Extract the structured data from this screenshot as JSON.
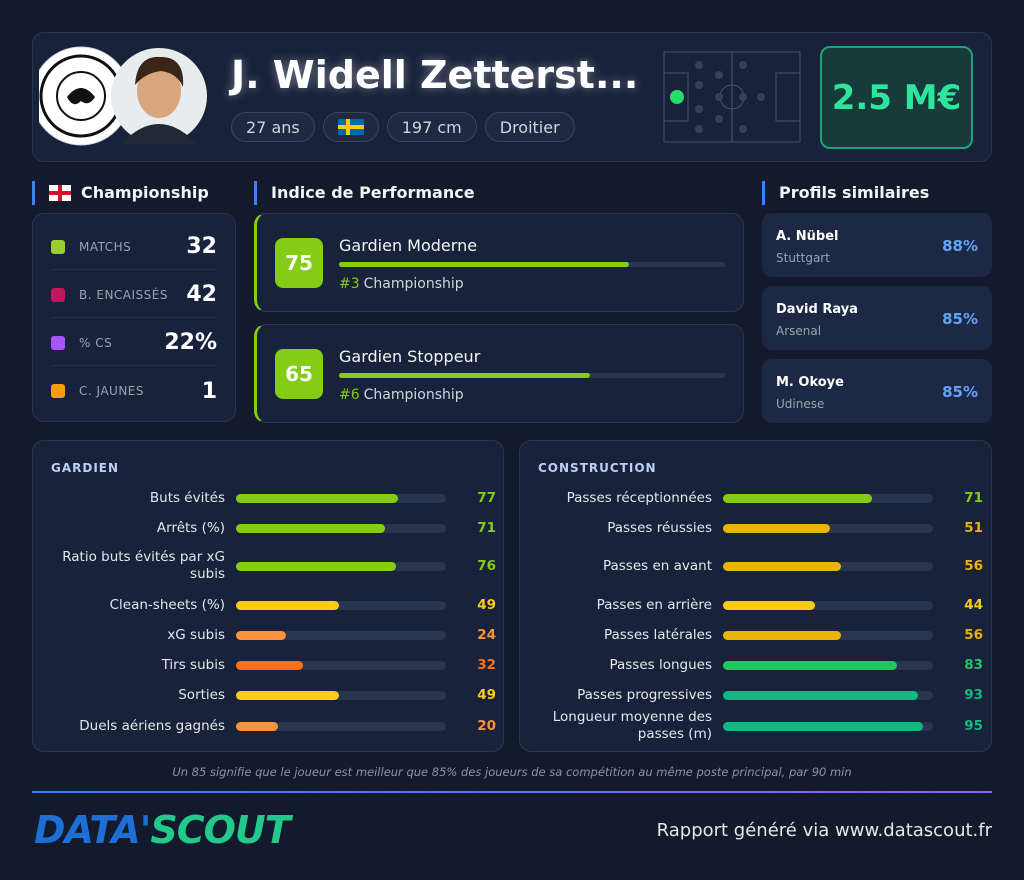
{
  "header": {
    "player_name": "J. Widell Zetterst...",
    "tags": [
      "27 ans",
      "197 cm",
      "Droitier"
    ],
    "market_value": "2.5 M€"
  },
  "league": {
    "name": "Championship",
    "stats": [
      {
        "label": "MATCHS",
        "value": "32"
      },
      {
        "label": "B. ENCAISSÉS",
        "value": "42"
      },
      {
        "label": "% CS",
        "value": "22%"
      },
      {
        "label": "C. JAUNES",
        "value": "1"
      }
    ]
  },
  "performance": {
    "title": "Indice de Performance",
    "items": [
      {
        "score": 75,
        "title": "Gardien Moderne",
        "rank": "#3",
        "league": "Championship"
      },
      {
        "score": 65,
        "title": "Gardien Stoppeur",
        "rank": "#6",
        "league": "Championship"
      }
    ]
  },
  "similar": {
    "title": "Profils similaires",
    "items": [
      {
        "name": "A. Nübel",
        "club": "Stuttgart",
        "match": "88%"
      },
      {
        "name": "David Raya",
        "club": "Arsenal",
        "match": "85%"
      },
      {
        "name": "M. Okoye",
        "club": "Udinese",
        "match": "85%"
      }
    ]
  },
  "panels": [
    {
      "title": "GARDIEN",
      "rows": [
        {
          "label": "Buts évités",
          "value": 77
        },
        {
          "label": "Arrêts (%)",
          "value": 71
        },
        {
          "label": "Ratio buts évités par xG subis",
          "value": 76
        },
        {
          "label": "Clean-sheets (%)",
          "value": 49
        },
        {
          "label": "xG subis",
          "value": 24
        },
        {
          "label": "Tirs subis",
          "value": 32
        },
        {
          "label": "Sorties",
          "value": 49
        },
        {
          "label": "Duels aériens gagnés",
          "value": 20
        }
      ]
    },
    {
      "title": "CONSTRUCTION",
      "rows": [
        {
          "label": "Passes réceptionnées",
          "value": 71
        },
        {
          "label": "Passes réussies",
          "value": 51
        },
        {
          "label": "Passes en avant",
          "value": 56
        },
        {
          "label": "Passes en arrière",
          "value": 44
        },
        {
          "label": "Passes latérales",
          "value": 56
        },
        {
          "label": "Passes longues",
          "value": 83
        },
        {
          "label": "Passes progressives",
          "value": 93
        },
        {
          "label": "Longueur moyenne des passes (m)",
          "value": 95
        }
      ]
    }
  ],
  "footnote": "Un 85 signifie que le joueur est meilleur que 85% des joueurs de sa compétition au même poste principal, par 90 min",
  "footer": {
    "brand_left": "DATA'",
    "brand_right": "SCOUT",
    "credit": "Rapport généré via www.datascout.fr"
  }
}
